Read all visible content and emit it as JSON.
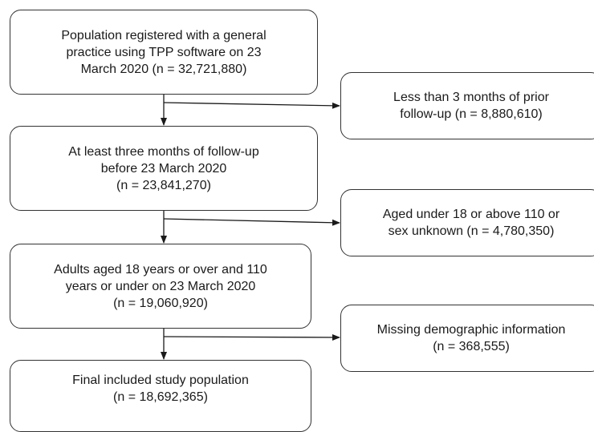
{
  "flow": {
    "steps": [
      {
        "label": "Population registered with a general\npractice using TPP software on 23\nMarch 2020 (n = 32,721,880)"
      },
      {
        "label": "At least three months of follow-up\nbefore 23 March 2020\n(n = 23,841,270)"
      },
      {
        "label": "Adults aged 18 years or over and 110\nyears or under on 23 March 2020\n(n = 19,060,920)"
      },
      {
        "label": "Final included study population\n(n = 18,692,365)"
      }
    ],
    "exclusions": [
      {
        "label": "Less than 3 months of prior\nfollow-up (n = 8,880,610)"
      },
      {
        "label": "Aged under 18 or above 110 or\nsex unknown (n = 4,780,350)"
      },
      {
        "label": "Missing demographic information\n(n = 368,555)"
      }
    ]
  },
  "colors": {
    "border": "#333333",
    "arrow": "#1a1a1a",
    "background": "#ffffff"
  }
}
